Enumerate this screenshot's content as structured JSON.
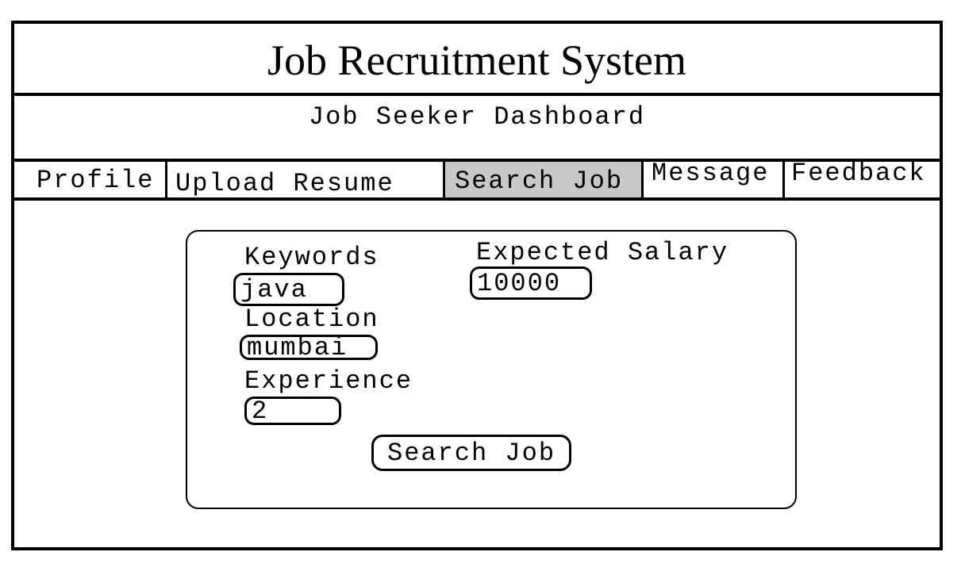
{
  "header": {
    "title": "Job Recruitment System",
    "subtitle": "Job Seeker Dashboard"
  },
  "nav": {
    "tabs": [
      {
        "label": "Profile"
      },
      {
        "label": "Upload Resume"
      },
      {
        "label": "Search Job",
        "active": true
      },
      {
        "label": "Message"
      },
      {
        "label": "Feedback"
      }
    ],
    "active_color": "#c8c8c8"
  },
  "search_form": {
    "keywords": {
      "label": "Keywords",
      "value": "java"
    },
    "location": {
      "label": "Location",
      "value": "mumbai"
    },
    "experience": {
      "label": "Experience",
      "value": "2"
    },
    "salary": {
      "label": "Expected Salary",
      "value": "10000"
    },
    "submit_label": "Search Job"
  }
}
